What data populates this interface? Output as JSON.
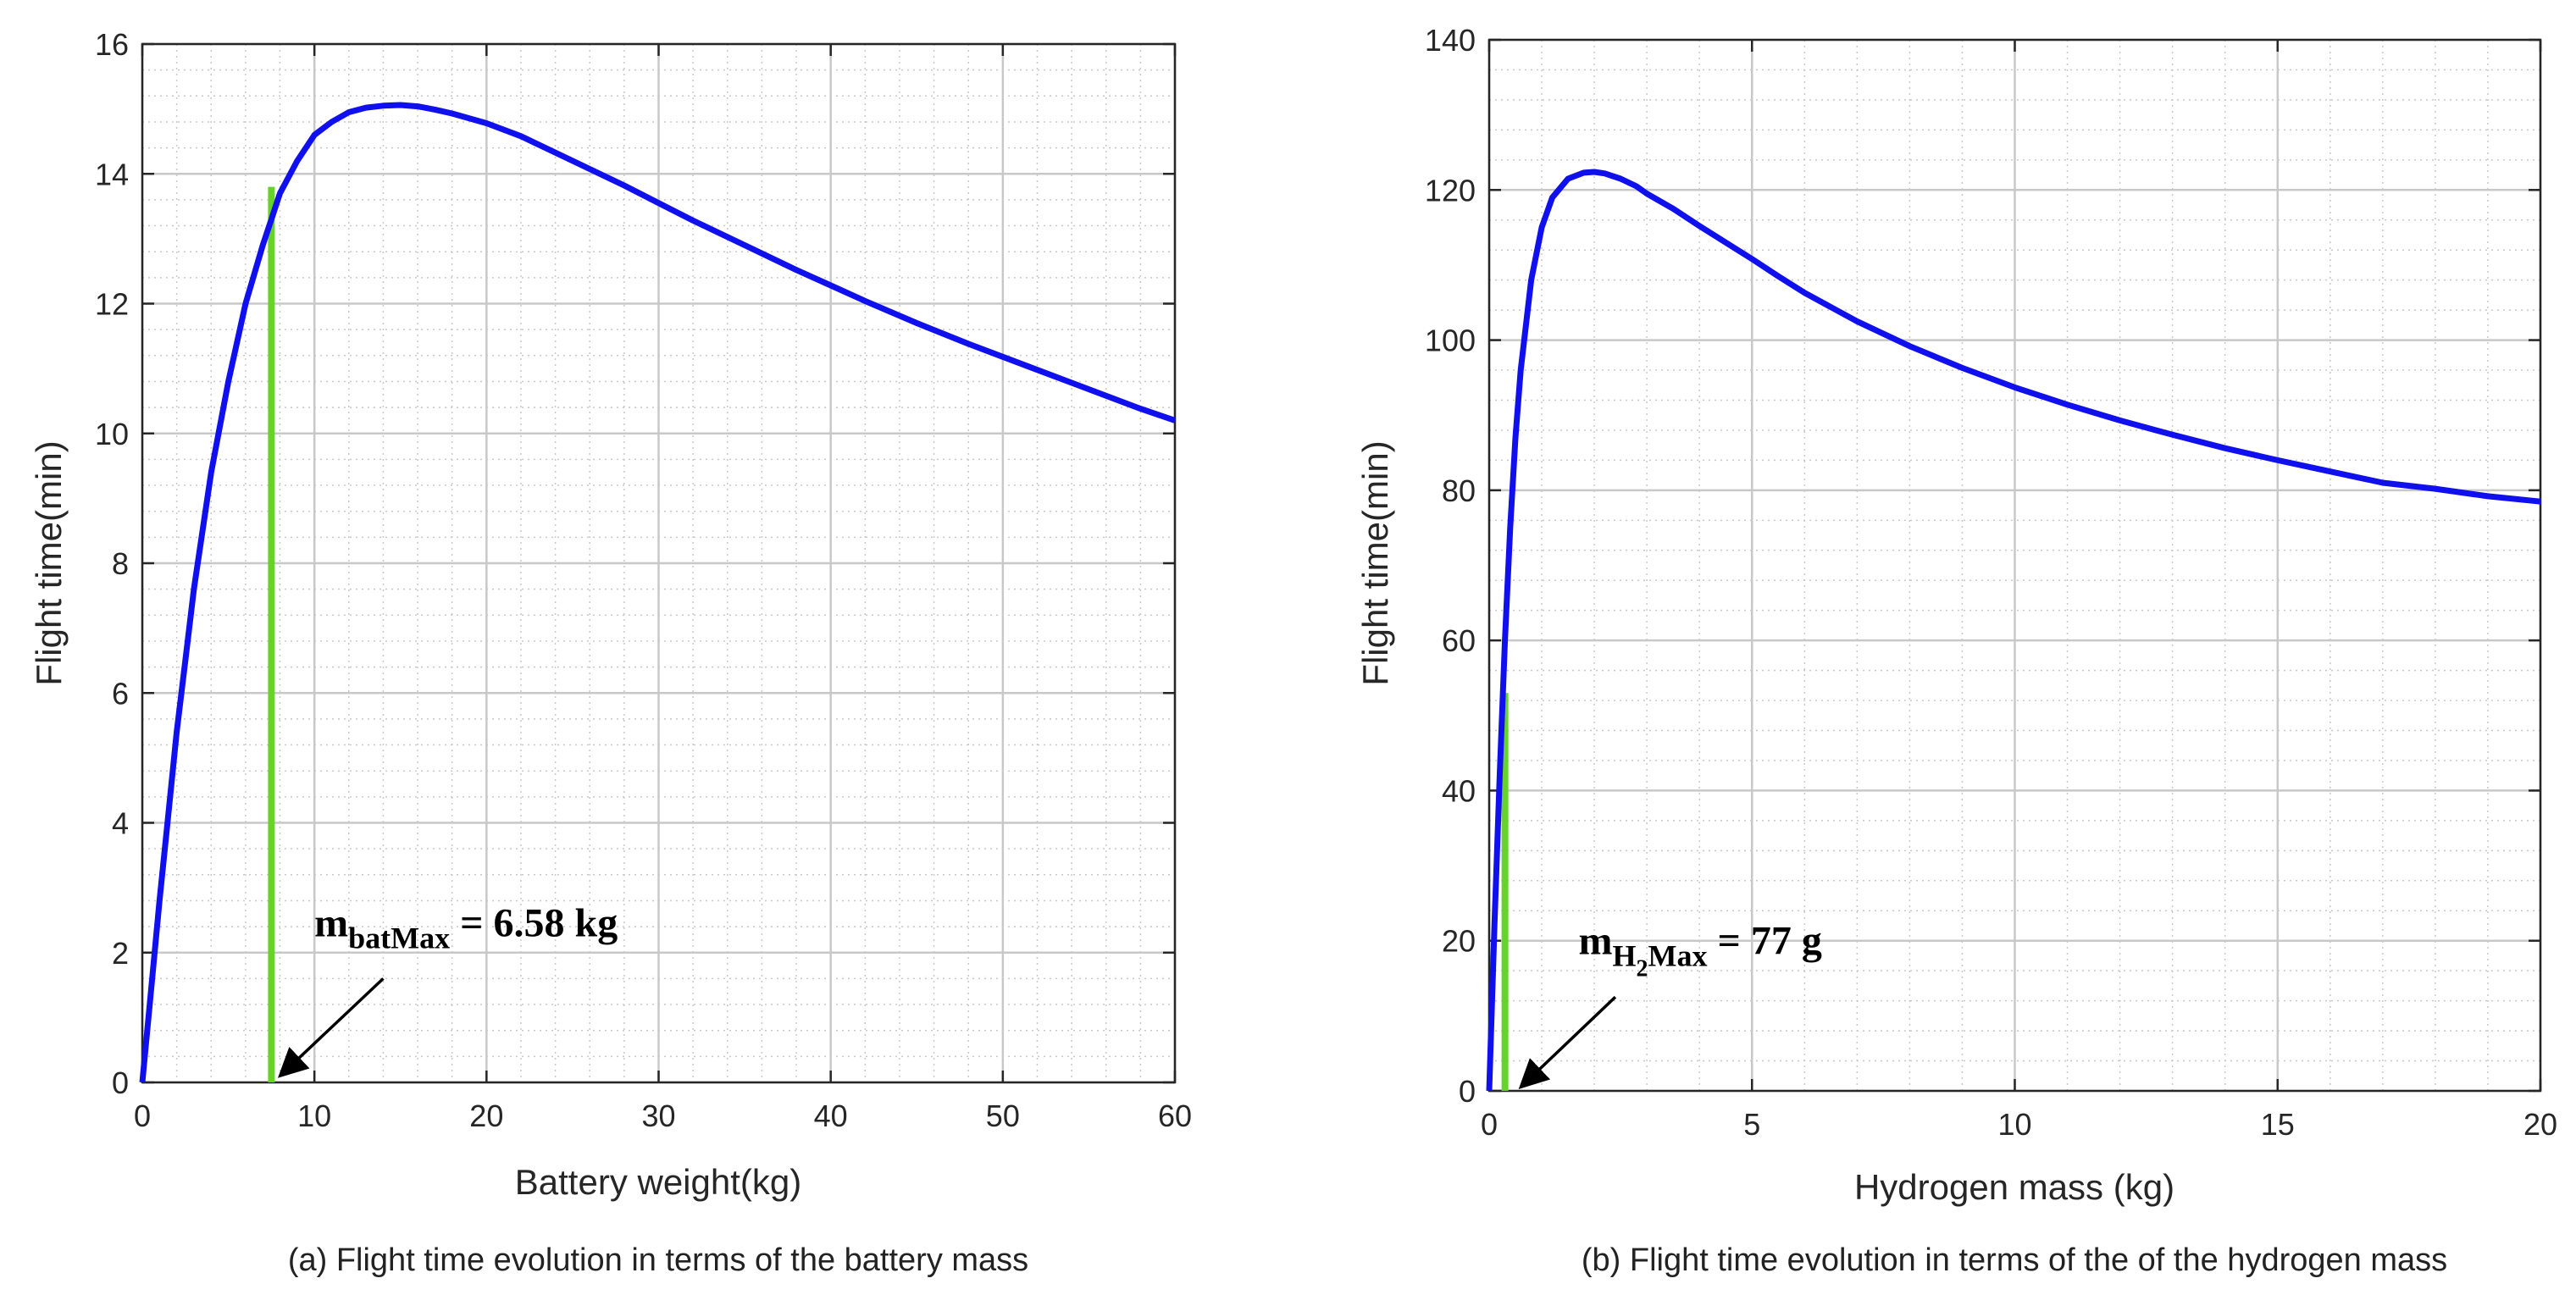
{
  "colors": {
    "curve": "#1010ee",
    "marker": "#66d22a",
    "grid_major": "#c8c8c8",
    "grid_minor": "#c8c8c8",
    "axes": "#262626"
  },
  "chart_data": [
    {
      "type": "line",
      "title": "",
      "caption": "(a) Flight time evolution in terms of the battery mass",
      "xlabel": "Battery weight(kg)",
      "ylabel": "Flight time(min)",
      "xlim": [
        0,
        60
      ],
      "ylim": [
        0,
        16
      ],
      "xticks": [
        0,
        10,
        20,
        30,
        40,
        50,
        60
      ],
      "yticks": [
        0,
        2,
        4,
        6,
        8,
        10,
        12,
        14,
        16
      ],
      "x_minor_step": 2,
      "y_minor_step": 0.4,
      "grid": true,
      "series": [
        {
          "name": "Flight time",
          "x": [
            0,
            0.5,
            1,
            1.5,
            2,
            2.5,
            3,
            4,
            5,
            6,
            7,
            7.5,
            8,
            9,
            10,
            11,
            12,
            13,
            14,
            15,
            16,
            17,
            18,
            20,
            22,
            25,
            28,
            30,
            32,
            35,
            38,
            40,
            42,
            45,
            48,
            50,
            52,
            55,
            58,
            60
          ],
          "y": [
            0,
            1.4,
            2.8,
            4.1,
            5.4,
            6.5,
            7.6,
            9.4,
            10.8,
            12.0,
            12.9,
            13.3,
            13.7,
            14.2,
            14.6,
            14.8,
            14.95,
            15.02,
            15.05,
            15.06,
            15.04,
            14.99,
            14.93,
            14.78,
            14.58,
            14.2,
            13.82,
            13.55,
            13.28,
            12.9,
            12.52,
            12.28,
            12.04,
            11.7,
            11.38,
            11.18,
            10.98,
            10.68,
            10.38,
            10.2
          ]
        }
      ],
      "marker_line": {
        "x": 7.5,
        "y_top": 13.8
      },
      "annotation": {
        "main": "m",
        "sub": "batMax",
        "rest": " = 6.58 kg",
        "x": 10,
        "y": 2.25,
        "arrow_from": [
          14,
          1.6
        ],
        "arrow_to": [
          8,
          0.1
        ]
      }
    },
    {
      "type": "line",
      "title": "",
      "caption": "(b) Flight time evolution in terms of the of the hydrogen mass",
      "xlabel": "Hydrogen mass (kg)",
      "ylabel": "Flight time(min)",
      "xlim": [
        0,
        20
      ],
      "ylim": [
        0,
        140
      ],
      "xticks": [
        0,
        5,
        10,
        15,
        20
      ],
      "yticks": [
        0,
        20,
        40,
        60,
        80,
        100,
        120,
        140
      ],
      "x_minor_step": 1,
      "y_minor_step": 4,
      "grid": true,
      "series": [
        {
          "name": "Flight time",
          "x": [
            0,
            0.1,
            0.2,
            0.3,
            0.4,
            0.5,
            0.6,
            0.8,
            1.0,
            1.2,
            1.5,
            1.8,
            2.0,
            2.2,
            2.5,
            2.8,
            3.0,
            3.5,
            4.0,
            4.5,
            5.0,
            5.5,
            6.0,
            7.0,
            8.0,
            9.0,
            10.0,
            11.0,
            12.0,
            13.0,
            14.0,
            15.0,
            16.0,
            17.0,
            18.0,
            19.0,
            20.0
          ],
          "y": [
            0,
            22,
            42,
            60,
            75,
            87,
            96,
            108,
            115,
            119,
            121.5,
            122.3,
            122.4,
            122.2,
            121.5,
            120.5,
            119.5,
            117.5,
            115.2,
            113,
            110.8,
            108.5,
            106.3,
            102.5,
            99.2,
            96.3,
            93.7,
            91.4,
            89.3,
            87.4,
            85.6,
            84,
            82.5,
            81,
            80.2,
            79.2,
            78.5
          ]
        }
      ],
      "marker_line": {
        "x": 0.3,
        "y_top": 53
      },
      "annotation": {
        "main": "m",
        "sub": "H",
        "subsub": "2",
        "sub2": "Max",
        "rest": " = 77 g",
        "x": 1.7,
        "y": 18.2,
        "arrow_from": [
          2.4,
          12.5
        ],
        "arrow_to": [
          0.6,
          0.5
        ]
      }
    }
  ]
}
